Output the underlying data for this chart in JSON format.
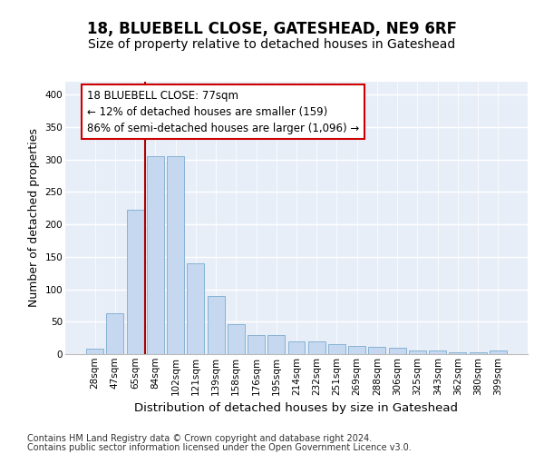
{
  "title": "18, BLUEBELL CLOSE, GATESHEAD, NE9 6RF",
  "subtitle": "Size of property relative to detached houses in Gateshead",
  "xlabel": "Distribution of detached houses by size in Gateshead",
  "ylabel": "Number of detached properties",
  "categories": [
    "28sqm",
    "47sqm",
    "65sqm",
    "84sqm",
    "102sqm",
    "121sqm",
    "139sqm",
    "158sqm",
    "176sqm",
    "195sqm",
    "214sqm",
    "232sqm",
    "251sqm",
    "269sqm",
    "288sqm",
    "306sqm",
    "325sqm",
    "343sqm",
    "362sqm",
    "380sqm",
    "399sqm"
  ],
  "values": [
    8,
    63,
    222,
    305,
    305,
    140,
    90,
    46,
    30,
    30,
    20,
    20,
    15,
    13,
    11,
    10,
    5,
    5,
    3,
    3,
    5
  ],
  "bar_color": "#c5d8ef",
  "bar_edgecolor": "#7aabcf",
  "background_color": "#e8eef8",
  "vline_x": 2.5,
  "vline_color": "#aa0000",
  "annotation_line1": "18 BLUEBELL CLOSE: 77sqm",
  "annotation_line2": "← 12% of detached houses are smaller (159)",
  "annotation_line3": "86% of semi-detached houses are larger (1,096) →",
  "ylim": [
    0,
    420
  ],
  "yticks": [
    0,
    50,
    100,
    150,
    200,
    250,
    300,
    350,
    400
  ],
  "footer_line1": "Contains HM Land Registry data © Crown copyright and database right 2024.",
  "footer_line2": "Contains public sector information licensed under the Open Government Licence v3.0.",
  "title_fontsize": 12,
  "subtitle_fontsize": 10,
  "xlabel_fontsize": 9.5,
  "ylabel_fontsize": 9,
  "tick_fontsize": 7.5,
  "annotation_fontsize": 8.5,
  "footer_fontsize": 7
}
